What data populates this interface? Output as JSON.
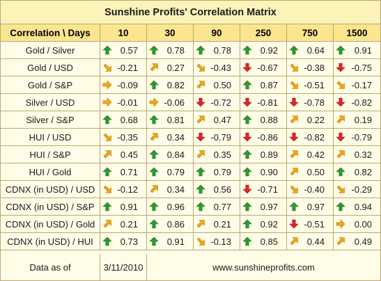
{
  "title": "Sunshine Profits' Correlation Matrix",
  "header": {
    "label": "Correlation \\ Days",
    "periods": [
      "10",
      "30",
      "90",
      "250",
      "750",
      "1500"
    ]
  },
  "colors": {
    "up": "#2e9a2e",
    "down": "#e0232a",
    "up_right": "#f0a818",
    "down_right": "#f0a818",
    "right": "#f0a818"
  },
  "rows": [
    {
      "label": "Gold / Silver",
      "cells": [
        {
          "value": "0.57",
          "arrow": "up"
        },
        {
          "value": "0.78",
          "arrow": "up"
        },
        {
          "value": "0.78",
          "arrow": "up"
        },
        {
          "value": "0.92",
          "arrow": "up"
        },
        {
          "value": "0.64",
          "arrow": "up"
        },
        {
          "value": "0.91",
          "arrow": "up"
        }
      ]
    },
    {
      "label": "Gold / USD",
      "cells": [
        {
          "value": "-0.21",
          "arrow": "down-right"
        },
        {
          "value": "0.27",
          "arrow": "up-right"
        },
        {
          "value": "-0.43",
          "arrow": "down-right"
        },
        {
          "value": "-0.67",
          "arrow": "down"
        },
        {
          "value": "-0.38",
          "arrow": "down-right"
        },
        {
          "value": "-0.75",
          "arrow": "down"
        }
      ]
    },
    {
      "label": "Gold / S&P",
      "cells": [
        {
          "value": "-0.09",
          "arrow": "right"
        },
        {
          "value": "0.82",
          "arrow": "up"
        },
        {
          "value": "0.50",
          "arrow": "up-right"
        },
        {
          "value": "0.87",
          "arrow": "up"
        },
        {
          "value": "-0.51",
          "arrow": "down-right"
        },
        {
          "value": "-0.17",
          "arrow": "down-right"
        }
      ]
    },
    {
      "label": "Silver / USD",
      "cells": [
        {
          "value": "-0.01",
          "arrow": "right"
        },
        {
          "value": "-0.06",
          "arrow": "right"
        },
        {
          "value": "-0.72",
          "arrow": "down"
        },
        {
          "value": "-0.81",
          "arrow": "down"
        },
        {
          "value": "-0.78",
          "arrow": "down"
        },
        {
          "value": "-0.82",
          "arrow": "down"
        }
      ]
    },
    {
      "label": "Silver / S&P",
      "cells": [
        {
          "value": "0.68",
          "arrow": "up"
        },
        {
          "value": "0.81",
          "arrow": "up"
        },
        {
          "value": "0.47",
          "arrow": "up-right"
        },
        {
          "value": "0.88",
          "arrow": "up"
        },
        {
          "value": "0.22",
          "arrow": "up-right"
        },
        {
          "value": "0.19",
          "arrow": "up-right"
        }
      ]
    },
    {
      "label": "HUI / USD",
      "cells": [
        {
          "value": "-0.35",
          "arrow": "down-right"
        },
        {
          "value": "0.34",
          "arrow": "up-right"
        },
        {
          "value": "-0.79",
          "arrow": "down"
        },
        {
          "value": "-0.86",
          "arrow": "down"
        },
        {
          "value": "-0.82",
          "arrow": "down"
        },
        {
          "value": "-0.79",
          "arrow": "down"
        }
      ]
    },
    {
      "label": "HUI / S&P",
      "cells": [
        {
          "value": "0.45",
          "arrow": "up-right"
        },
        {
          "value": "0.84",
          "arrow": "up"
        },
        {
          "value": "0.35",
          "arrow": "up-right"
        },
        {
          "value": "0.89",
          "arrow": "up"
        },
        {
          "value": "0.42",
          "arrow": "up-right"
        },
        {
          "value": "0.32",
          "arrow": "up-right"
        }
      ]
    },
    {
      "label": "HUI / Gold",
      "cells": [
        {
          "value": "0.71",
          "arrow": "up"
        },
        {
          "value": "0.79",
          "arrow": "up"
        },
        {
          "value": "0.79",
          "arrow": "up"
        },
        {
          "value": "0.90",
          "arrow": "up"
        },
        {
          "value": "0.50",
          "arrow": "up-right"
        },
        {
          "value": "0.82",
          "arrow": "up"
        }
      ]
    },
    {
      "label": "CDNX (in USD) / USD",
      "cells": [
        {
          "value": "-0.12",
          "arrow": "down-right"
        },
        {
          "value": "0.34",
          "arrow": "up-right"
        },
        {
          "value": "0.56",
          "arrow": "up"
        },
        {
          "value": "-0.71",
          "arrow": "down"
        },
        {
          "value": "-0.40",
          "arrow": "down-right"
        },
        {
          "value": "-0.29",
          "arrow": "down-right"
        }
      ]
    },
    {
      "label": "CDNX (in USD) / S&P",
      "cells": [
        {
          "value": "0.91",
          "arrow": "up"
        },
        {
          "value": "0.96",
          "arrow": "up"
        },
        {
          "value": "0.77",
          "arrow": "up"
        },
        {
          "value": "0.97",
          "arrow": "up"
        },
        {
          "value": "0.97",
          "arrow": "up"
        },
        {
          "value": "0.94",
          "arrow": "up"
        }
      ]
    },
    {
      "label": "CDNX (in USD) / Gold",
      "cells": [
        {
          "value": "0.21",
          "arrow": "up-right"
        },
        {
          "value": "0.86",
          "arrow": "up"
        },
        {
          "value": "0.21",
          "arrow": "up-right"
        },
        {
          "value": "0.92",
          "arrow": "up"
        },
        {
          "value": "-0.51",
          "arrow": "down"
        },
        {
          "value": "0.00",
          "arrow": "right"
        }
      ]
    },
    {
      "label": "CDNX (in USD) / HUI",
      "cells": [
        {
          "value": "0.73",
          "arrow": "up"
        },
        {
          "value": "0.91",
          "arrow": "up"
        },
        {
          "value": "-0.13",
          "arrow": "down-right"
        },
        {
          "value": "0.85",
          "arrow": "up"
        },
        {
          "value": "0.44",
          "arrow": "up-right"
        },
        {
          "value": "0.49",
          "arrow": "up-right"
        }
      ]
    }
  ],
  "footer": {
    "label": "Data as of",
    "date": "3/11/2010",
    "website": "www.sunshineprofits.com"
  }
}
